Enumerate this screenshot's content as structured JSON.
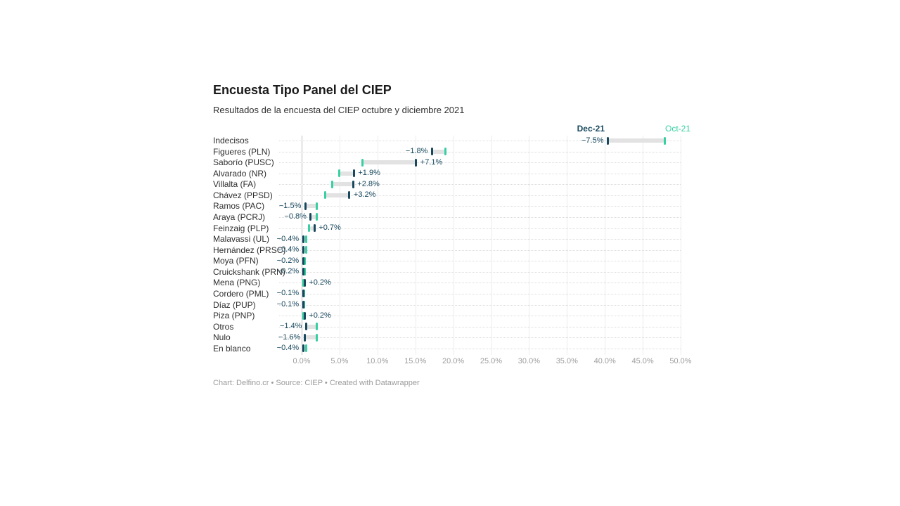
{
  "header": {
    "title": "Encuesta Tipo Panel del CIEP",
    "subtitle": "Resultados de la encuesta del CIEP octubre y diciembre 2021"
  },
  "legend": {
    "dec_label": "Dec-21",
    "oct_label": "Oct-21"
  },
  "colors": {
    "dec": "#18485e",
    "oct": "#38d0a2",
    "connector": "#e2e2e2",
    "zero_gridline": "#bcbcbc",
    "gridline": "#ececec"
  },
  "footer": {
    "text": "Chart: Delfino.cr • Source: CIEP • Created with Datawrapper"
  },
  "chart_data": {
    "type": "range",
    "title": "Encuesta Tipo Panel del CIEP",
    "subtitle": "Resultados de la encuesta del CIEP octubre y diciembre 2021",
    "series_names": [
      "Oct-21",
      "Dec-21"
    ],
    "xlim": [
      0,
      50
    ],
    "x_axis_ticks": [
      "0.0%",
      "5.0%",
      "10.0%",
      "15.0%",
      "20.0%",
      "25.0%",
      "30.0%",
      "35.0%",
      "40.0%",
      "45.0%",
      "50.0%"
    ],
    "grid": true,
    "legend_position": "top-right",
    "rows": [
      {
        "label": "Indecisos",
        "oct": 47.9,
        "dec": 40.4,
        "change": "−7.5%"
      },
      {
        "label": "Figueres (PLN)",
        "oct": 19.0,
        "dec": 17.2,
        "change": "−1.8%"
      },
      {
        "label": "Saborío (PUSC)",
        "oct": 8.0,
        "dec": 15.1,
        "change": "+7.1%"
      },
      {
        "label": "Alvarado (NR)",
        "oct": 5.0,
        "dec": 6.9,
        "change": "+1.9%"
      },
      {
        "label": "Villalta (FA)",
        "oct": 4.0,
        "dec": 6.8,
        "change": "+2.8%"
      },
      {
        "label": "Chávez (PPSD)",
        "oct": 3.1,
        "dec": 6.3,
        "change": "+3.2%"
      },
      {
        "label": "Ramos (PAC)",
        "oct": 2.0,
        "dec": 0.5,
        "change": "−1.5%"
      },
      {
        "label": "Araya (PCRJ)",
        "oct": 2.0,
        "dec": 1.2,
        "change": "−0.8%"
      },
      {
        "label": "Feinzaig (PLP)",
        "oct": 1.0,
        "dec": 1.7,
        "change": "+0.7%"
      },
      {
        "label": "Malavassi (UL)",
        "oct": 0.6,
        "dec": 0.2,
        "change": "−0.4%"
      },
      {
        "label": "Hernández (PRSC)",
        "oct": 0.6,
        "dec": 0.2,
        "change": "−0.4%"
      },
      {
        "label": "Moya (PFN)",
        "oct": 0.4,
        "dec": 0.2,
        "change": "−0.2%"
      },
      {
        "label": "Cruickshank (PRN)",
        "oct": 0.4,
        "dec": 0.2,
        "change": "−0.2%"
      },
      {
        "label": "Mena (PNG)",
        "oct": 0.2,
        "dec": 0.4,
        "change": "+0.2%"
      },
      {
        "label": "Cordero (PML)",
        "oct": 0.3,
        "dec": 0.2,
        "change": "−0.1%"
      },
      {
        "label": "Díaz (PUP)",
        "oct": 0.3,
        "dec": 0.2,
        "change": "−0.1%"
      },
      {
        "label": "Piza (PNP)",
        "oct": 0.2,
        "dec": 0.4,
        "change": "+0.2%"
      },
      {
        "label": "Otros",
        "oct": 2.0,
        "dec": 0.6,
        "change": "−1.4%"
      },
      {
        "label": "Nulo",
        "oct": 2.0,
        "dec": 0.4,
        "change": "−1.6%"
      },
      {
        "label": "En blanco",
        "oct": 0.6,
        "dec": 0.2,
        "change": "−0.4%"
      }
    ]
  }
}
